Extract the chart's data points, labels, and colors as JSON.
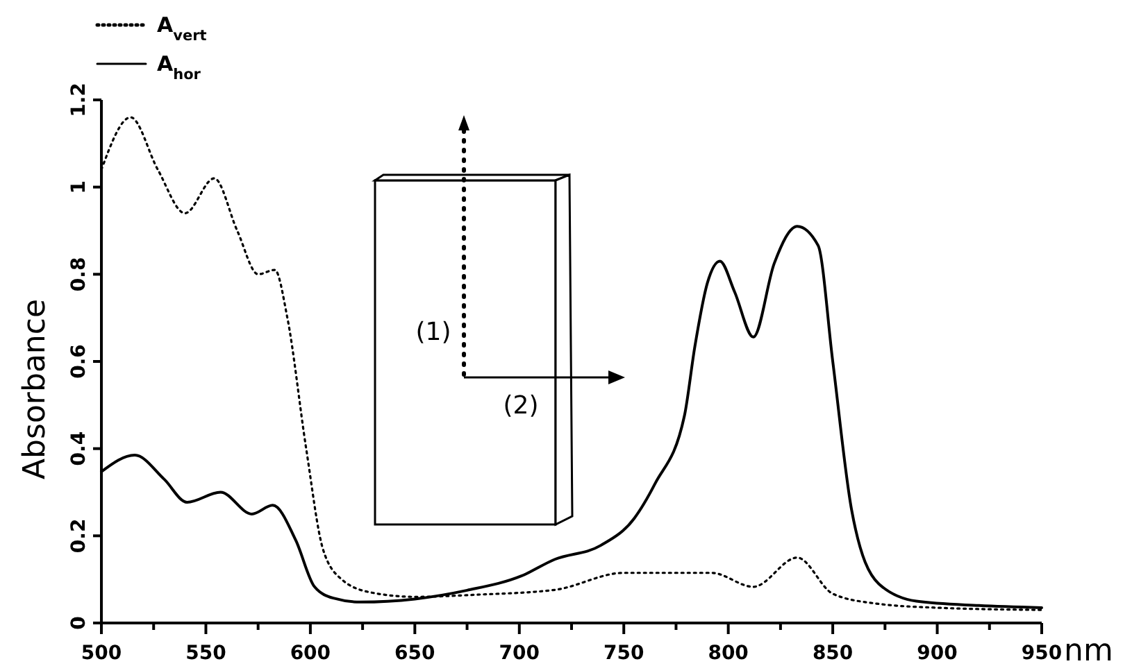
{
  "chart_data": {
    "type": "line",
    "xlabel": "nm",
    "ylabel": "Absorbance",
    "xlim": [
      500,
      950
    ],
    "ylim": [
      0,
      1.2
    ],
    "xticks": [
      500,
      {
        "value": 525,
        "label": null
      },
      550,
      {
        "value": 575,
        "label": null
      },
      600,
      {
        "value": 625,
        "label": null
      },
      650,
      {
        "value": 675,
        "label": null
      },
      700,
      {
        "value": 725,
        "label": null
      },
      750,
      {
        "value": 775,
        "label": null
      },
      800,
      {
        "value": 825,
        "label": null
      },
      850,
      {
        "value": 875,
        "label": null
      },
      900,
      {
        "value": 925,
        "label": null
      },
      950
    ],
    "yticks": [
      0,
      0.2,
      0.4,
      0.6,
      0.8,
      1,
      1.2
    ],
    "grid": false,
    "legend": "top left",
    "marker": "none",
    "annotations": [
      "(1)",
      "(2)"
    ],
    "series": [
      {
        "name": "A$_{vert}$",
        "color": "#000000",
        "line_style": "dotted",
        "x": [
          500,
          514,
          527,
          540,
          554,
          565,
          575,
          583,
          589,
          598,
          606,
          615,
          629,
          650,
          680,
          717,
          750,
          770,
          792,
          812,
          833,
          850,
          870,
          900,
          950
        ],
        "values": [
          1.04,
          1.16,
          1.04,
          0.94,
          1.02,
          0.9,
          0.8,
          0.81,
          0.7,
          0.4,
          0.17,
          0.1,
          0.07,
          0.06,
          0.065,
          0.076,
          0.115,
          0.115,
          0.115,
          0.083,
          0.15,
          0.067,
          0.045,
          0.035,
          0.03
        ]
      },
      {
        "name": "A$_{hor}$",
        "color": "#000000",
        "line_style": "solid",
        "x": [
          500,
          516,
          530,
          541,
          557,
          572,
          582,
          593,
          602,
          611,
          624,
          650,
          675,
          701,
          717,
          739,
          755,
          765,
          779,
          784,
          790,
          796,
          803,
          812,
          822,
          833,
          843,
          850,
          859,
          872,
          890,
          920,
          950
        ],
        "values": [
          0.347,
          0.385,
          0.33,
          0.277,
          0.3,
          0.25,
          0.27,
          0.19,
          0.083,
          0.057,
          0.048,
          0.055,
          0.075,
          0.108,
          0.146,
          0.178,
          0.24,
          0.32,
          0.475,
          0.634,
          0.78,
          0.83,
          0.76,
          0.656,
          0.825,
          0.91,
          0.866,
          0.6,
          0.26,
          0.09,
          0.05,
          0.04,
          0.035
        ]
      }
    ]
  }
}
